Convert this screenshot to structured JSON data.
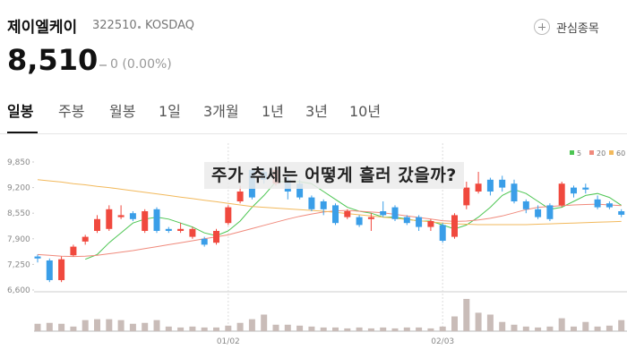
{
  "header": {
    "name": "제이엘케이",
    "code": "322510",
    "market": "KOSDAQ",
    "watch_button": "관심종목",
    "price": "8,510",
    "change": "0 (0.00%)"
  },
  "tabs": [
    "일봉",
    "주봉",
    "월봉",
    "1일",
    "3개월",
    "1년",
    "3년",
    "10년"
  ],
  "overlay_caption": "주가 추세는 어떻게 흘러 갔을까?",
  "chart_data": {
    "type": "candlestick",
    "categories": [
      null,
      null,
      null,
      null,
      null,
      null,
      null,
      null,
      null,
      null,
      null,
      null,
      null,
      null,
      null,
      null,
      "01/02",
      null,
      null,
      null,
      null,
      null,
      null,
      null,
      null,
      null,
      null,
      null,
      null,
      null,
      null,
      null,
      null,
      null,
      "02/03",
      null,
      null,
      null,
      null,
      null,
      null,
      null,
      null,
      null,
      null,
      null,
      null,
      null,
      null,
      null
    ],
    "open": [
      7450,
      7350,
      6850,
      7480,
      7830,
      8100,
      8150,
      8450,
      8550,
      8100,
      8650,
      8150,
      8100,
      7950,
      7900,
      7800,
      8300,
      8850,
      9650,
      9600,
      9300,
      9400,
      9300,
      8950,
      8850,
      8750,
      8450,
      8450,
      8400,
      8600,
      8700,
      8450,
      8450,
      8200,
      8250,
      7950,
      8750,
      9100,
      9400,
      9400,
      9300,
      8850,
      8650,
      8750,
      8750,
      9200,
      9200,
      8900,
      8800,
      8600
    ],
    "high": [
      7500,
      7400,
      7450,
      7750,
      8000,
      8500,
      8750,
      8750,
      8600,
      8650,
      8700,
      8200,
      8300,
      8200,
      7950,
      8150,
      8750,
      9250,
      9700,
      9700,
      9750,
      9500,
      9400,
      9000,
      8900,
      8800,
      8650,
      8500,
      8550,
      8850,
      8750,
      8500,
      8500,
      8400,
      8300,
      8550,
      9350,
      9600,
      9450,
      9500,
      9400,
      8900,
      8750,
      8800,
      9350,
      9250,
      9300,
      9000,
      8850,
      8650
    ],
    "low": [
      7300,
      6800,
      6800,
      7450,
      7750,
      8050,
      8100,
      8400,
      8350,
      8050,
      8050,
      8050,
      8050,
      7900,
      7700,
      7750,
      8250,
      8800,
      8900,
      9300,
      9250,
      8900,
      8900,
      8600,
      8500,
      8250,
      8400,
      8200,
      8100,
      8450,
      8350,
      8250,
      8100,
      8100,
      7800,
      7900,
      8650,
      9050,
      9000,
      9100,
      8800,
      8550,
      8400,
      8350,
      8700,
      8950,
      9050,
      8650,
      8650,
      8450
    ],
    "close": [
      7400,
      6850,
      7380,
      7700,
      7950,
      8400,
      8650,
      8500,
      8400,
      8600,
      8100,
      8100,
      8150,
      8150,
      7750,
      8100,
      8700,
      9100,
      8950,
      9400,
      9650,
      9100,
      8950,
      8650,
      8650,
      8300,
      8600,
      8250,
      8450,
      8500,
      8400,
      8300,
      8200,
      8350,
      7850,
      8500,
      9200,
      9300,
      9100,
      9200,
      8850,
      8650,
      8450,
      8400,
      9300,
      9050,
      9150,
      8700,
      8700,
      8510
    ],
    "volume": [
      8,
      9,
      8,
      5,
      12,
      13,
      13,
      12,
      8,
      9,
      12,
      5,
      4,
      5,
      4,
      4,
      6,
      9,
      13,
      18,
      7,
      7,
      6,
      5,
      4,
      4,
      3,
      4,
      3,
      4,
      3,
      4,
      4,
      3,
      5,
      16,
      35,
      20,
      18,
      10,
      7,
      5,
      4,
      5,
      14,
      5,
      10,
      5,
      6,
      12
    ],
    "up_color": "#f0493e",
    "down_color": "#3a9ee8",
    "series": [
      {
        "name": "5",
        "color": "#4cc552",
        "values": [
          null,
          null,
          null,
          null,
          7380,
          7500,
          7800,
          8050,
          8300,
          8400,
          8450,
          8400,
          8300,
          8200,
          8050,
          7980,
          8100,
          8350,
          8700,
          9000,
          9350,
          9350,
          9350,
          9300,
          9100,
          8900,
          8700,
          8600,
          8550,
          8450,
          8450,
          8400,
          8350,
          8350,
          8250,
          8150,
          8250,
          8450,
          8700,
          9000,
          9150,
          9050,
          8850,
          8650,
          8700,
          8850,
          9000,
          9050,
          8950,
          8750
        ]
      },
      {
        "name": "20",
        "color": "#f08a7c",
        "values": [
          7500,
          7480,
          7460,
          7450,
          7460,
          7480,
          7520,
          7560,
          7600,
          7650,
          7700,
          7750,
          7800,
          7850,
          7900,
          7950,
          8000,
          8080,
          8160,
          8240,
          8320,
          8400,
          8470,
          8530,
          8580,
          8610,
          8620,
          8600,
          8580,
          8560,
          8520,
          8480,
          8440,
          8400,
          8360,
          8340,
          8350,
          8380,
          8420,
          8480,
          8560,
          8640,
          8700,
          8720,
          8740,
          8760,
          8770,
          8780,
          8760,
          8740
        ]
      },
      {
        "name": "60",
        "color": "#f2b95c",
        "values": [
          9400,
          9370,
          9340,
          9300,
          9270,
          9230,
          9200,
          9160,
          9120,
          9080,
          9040,
          9000,
          8960,
          8920,
          8880,
          8840,
          8800,
          8760,
          8720,
          8700,
          8680,
          8660,
          8640,
          8620,
          8600,
          8570,
          8540,
          8510,
          8480,
          8450,
          8420,
          8390,
          8360,
          8330,
          8300,
          8280,
          8270,
          8260,
          8260,
          8260,
          8260,
          8260,
          8270,
          8280,
          8290,
          8300,
          8310,
          8320,
          8330,
          8340
        ]
      }
    ],
    "ylim": [
      6600,
      9850
    ],
    "yticks": [
      {
        "value": 6600,
        "label": "6,600"
      },
      {
        "value": 7250,
        "label": "7,250"
      },
      {
        "value": 7900,
        "label": "7,900"
      },
      {
        "value": 8550,
        "label": "8,550"
      },
      {
        "value": 9200,
        "label": "9,200"
      },
      {
        "value": 9850,
        "label": "9,850"
      }
    ]
  }
}
